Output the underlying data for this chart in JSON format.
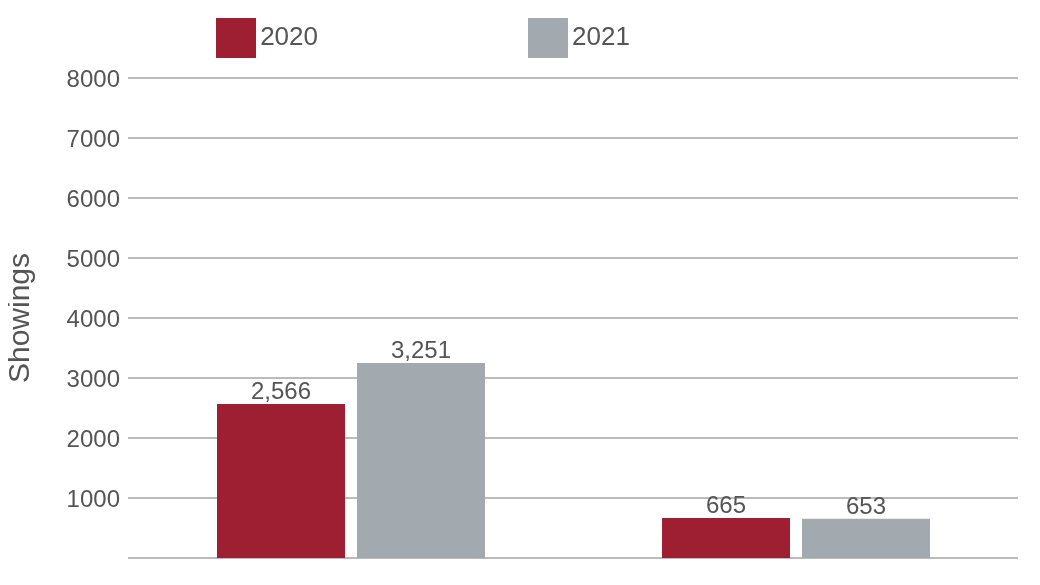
{
  "chart_data": {
    "type": "bar",
    "ylabel": "Showings",
    "categories": [
      null,
      null
    ],
    "series": [
      {
        "name": "2020",
        "color": "#9e1f32",
        "values": [
          2566,
          665
        ],
        "value_labels": [
          "2,566",
          "665"
        ]
      },
      {
        "name": "2021",
        "color": "#a2aaaf",
        "values": [
          3251,
          653
        ],
        "value_labels": [
          "3,251",
          "653"
        ]
      }
    ],
    "ylim": [
      0,
      8000
    ],
    "yticks": [
      1000,
      2000,
      3000,
      4000,
      5000,
      6000,
      7000,
      8000
    ],
    "grid": "y",
    "legend": "top"
  }
}
